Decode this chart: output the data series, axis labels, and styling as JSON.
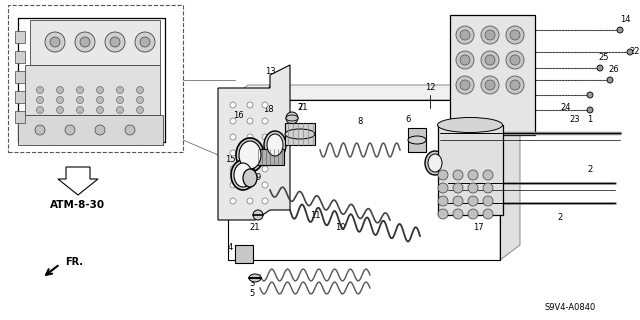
{
  "bg_color": "#ffffff",
  "line_color": "#000000",
  "part_number_text": "S9V4-A0840",
  "ref_text": "ATM-8-30",
  "fr_text": "FR.",
  "gray_light": "#cccccc",
  "gray_mid": "#999999",
  "gray_dark": "#555555"
}
